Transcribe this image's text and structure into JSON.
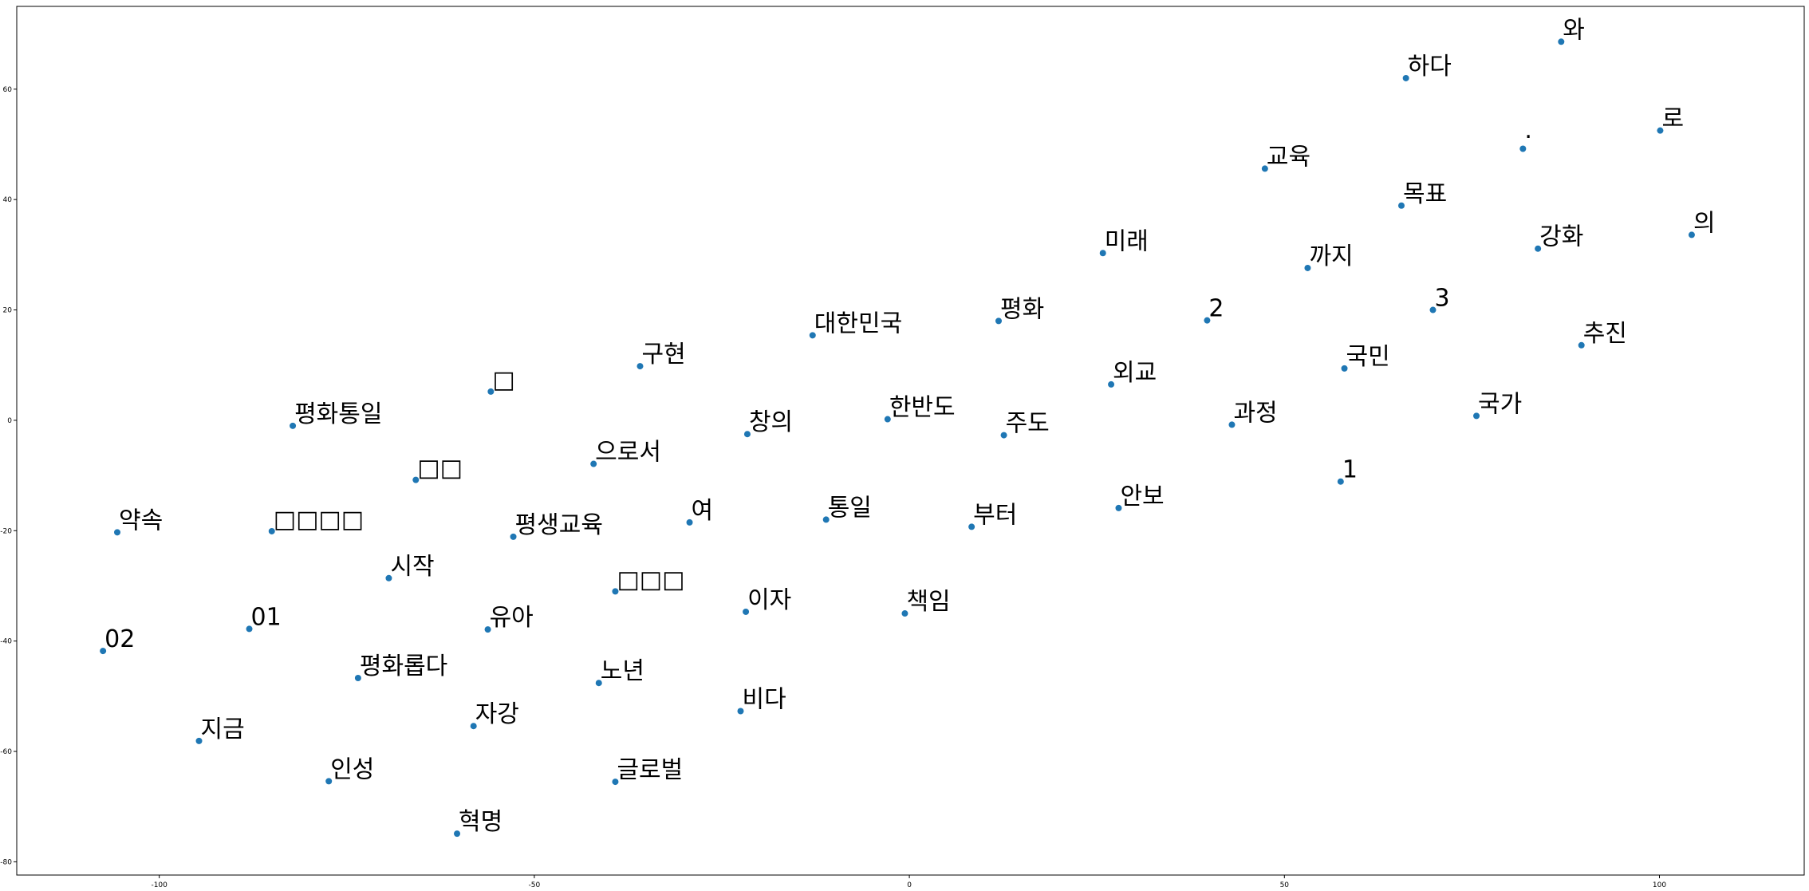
{
  "chart_data": {
    "type": "scatter",
    "title": "",
    "xlabel": "",
    "ylabel": "",
    "xlim": [
      -119,
      119.3
    ],
    "ylim": [
      -82.4,
      75
    ],
    "xticks": [
      -100,
      -50,
      0,
      50,
      100
    ],
    "yticks": [
      -80,
      -60,
      -40,
      -20,
      0,
      20,
      40,
      60
    ],
    "xtick_labels": [
      "-100",
      "-50",
      "0",
      "50",
      "100"
    ],
    "ytick_labels": [
      "-80",
      "-60",
      "-40",
      "-20",
      "0",
      "20",
      "40",
      "60"
    ],
    "grid": false,
    "marker_color": "#1f77b4",
    "points": [
      {
        "label": "와",
        "x": 86.9,
        "y": 68.6
      },
      {
        "label": "하다",
        "x": 66.2,
        "y": 62.0
      },
      {
        "label": "로",
        "x": 100.1,
        "y": 52.5
      },
      {
        "label": "·",
        "x": 81.8,
        "y": 49.2
      },
      {
        "label": "교육",
        "x": 47.4,
        "y": 45.6
      },
      {
        "label": "목표",
        "x": 65.6,
        "y": 38.9
      },
      {
        "label": "의",
        "x": 104.3,
        "y": 33.6
      },
      {
        "label": "강화",
        "x": 83.8,
        "y": 31.1
      },
      {
        "label": "미래",
        "x": 25.8,
        "y": 30.3
      },
      {
        "label": "까지",
        "x": 53.1,
        "y": 27.6
      },
      {
        "label": "3",
        "x": 69.8,
        "y": 20.0
      },
      {
        "label": "평화",
        "x": 11.9,
        "y": 18.0
      },
      {
        "label": "2",
        "x": 39.7,
        "y": 18.1
      },
      {
        "label": "대한민국",
        "x": -12.9,
        "y": 15.4
      },
      {
        "label": "추진",
        "x": 89.6,
        "y": 13.6
      },
      {
        "label": "구현",
        "x": -35.9,
        "y": 9.8
      },
      {
        "label": "국민",
        "x": 58.0,
        "y": 9.4
      },
      {
        "label": "외교",
        "x": 26.9,
        "y": 6.5
      },
      {
        "label": "□",
        "x": -55.8,
        "y": 5.2
      },
      {
        "label": "국가",
        "x": 75.6,
        "y": 0.8
      },
      {
        "label": "한반도",
        "x": -2.9,
        "y": 0.2
      },
      {
        "label": "평화통일",
        "x": -82.2,
        "y": -1.0
      },
      {
        "label": "과정",
        "x": 43.0,
        "y": -0.8
      },
      {
        "label": "창의",
        "x": -21.6,
        "y": -2.5
      },
      {
        "label": "주도",
        "x": 12.6,
        "y": -2.7
      },
      {
        "label": "으로서",
        "x": -42.1,
        "y": -7.9
      },
      {
        "label": "□□",
        "x": -65.8,
        "y": -10.8
      },
      {
        "label": "1",
        "x": 57.5,
        "y": -11.1
      },
      {
        "label": "안보",
        "x": 27.9,
        "y": -15.9
      },
      {
        "label": "통일",
        "x": -11.1,
        "y": -18.0
      },
      {
        "label": "여",
        "x": -29.3,
        "y": -18.5
      },
      {
        "label": "부터",
        "x": 8.3,
        "y": -19.3
      },
      {
        "label": "약속",
        "x": -105.6,
        "y": -20.3
      },
      {
        "label": "□□□□",
        "x": -85.0,
        "y": -20.1
      },
      {
        "label": "평생교육",
        "x": -52.8,
        "y": -21.1
      },
      {
        "label": "시작",
        "x": -69.4,
        "y": -28.6
      },
      {
        "label": "□□□",
        "x": -39.2,
        "y": -31.0
      },
      {
        "label": "이자",
        "x": -21.8,
        "y": -34.7
      },
      {
        "label": "책임",
        "x": -0.6,
        "y": -35.0
      },
      {
        "label": "01",
        "x": -88.0,
        "y": -37.8
      },
      {
        "label": "유아",
        "x": -56.2,
        "y": -37.9
      },
      {
        "label": "02",
        "x": -107.5,
        "y": -41.8
      },
      {
        "label": "평화롭다",
        "x": -73.5,
        "y": -46.7
      },
      {
        "label": "노년",
        "x": -41.4,
        "y": -47.6
      },
      {
        "label": "비다",
        "x": -22.5,
        "y": -52.7
      },
      {
        "label": "자강",
        "x": -58.1,
        "y": -55.4
      },
      {
        "label": "지금",
        "x": -94.7,
        "y": -58.1
      },
      {
        "label": "인성",
        "x": -77.4,
        "y": -65.4
      },
      {
        "label": "글로벌",
        "x": -39.2,
        "y": -65.5
      },
      {
        "label": "혁명",
        "x": -60.3,
        "y": -74.9
      }
    ]
  }
}
